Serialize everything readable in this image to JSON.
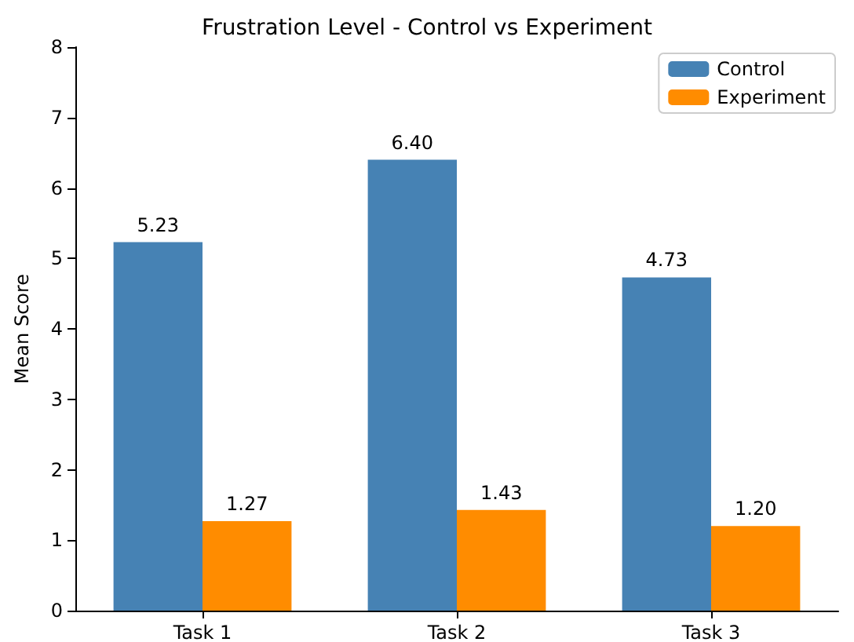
{
  "chart_data": {
    "type": "bar",
    "title": "Frustration Level - Control vs Experiment",
    "ylabel": "Mean Score",
    "categories": [
      "Task 1",
      "Task 2",
      "Task 3"
    ],
    "series": [
      {
        "name": "Control",
        "color": "#4682b4",
        "values": [
          5.23,
          6.4,
          4.73
        ],
        "value_labels": [
          "5.23",
          "6.40",
          "4.73"
        ]
      },
      {
        "name": "Experiment",
        "color": "#ff8c00",
        "values": [
          1.27,
          1.43,
          1.2
        ],
        "value_labels": [
          "1.27",
          "1.43",
          "1.20"
        ]
      }
    ],
    "ylim": [
      0,
      8
    ],
    "yticks": [
      0,
      1,
      2,
      3,
      4,
      5,
      6,
      7,
      8
    ],
    "grid": false,
    "legend": "top right"
  }
}
